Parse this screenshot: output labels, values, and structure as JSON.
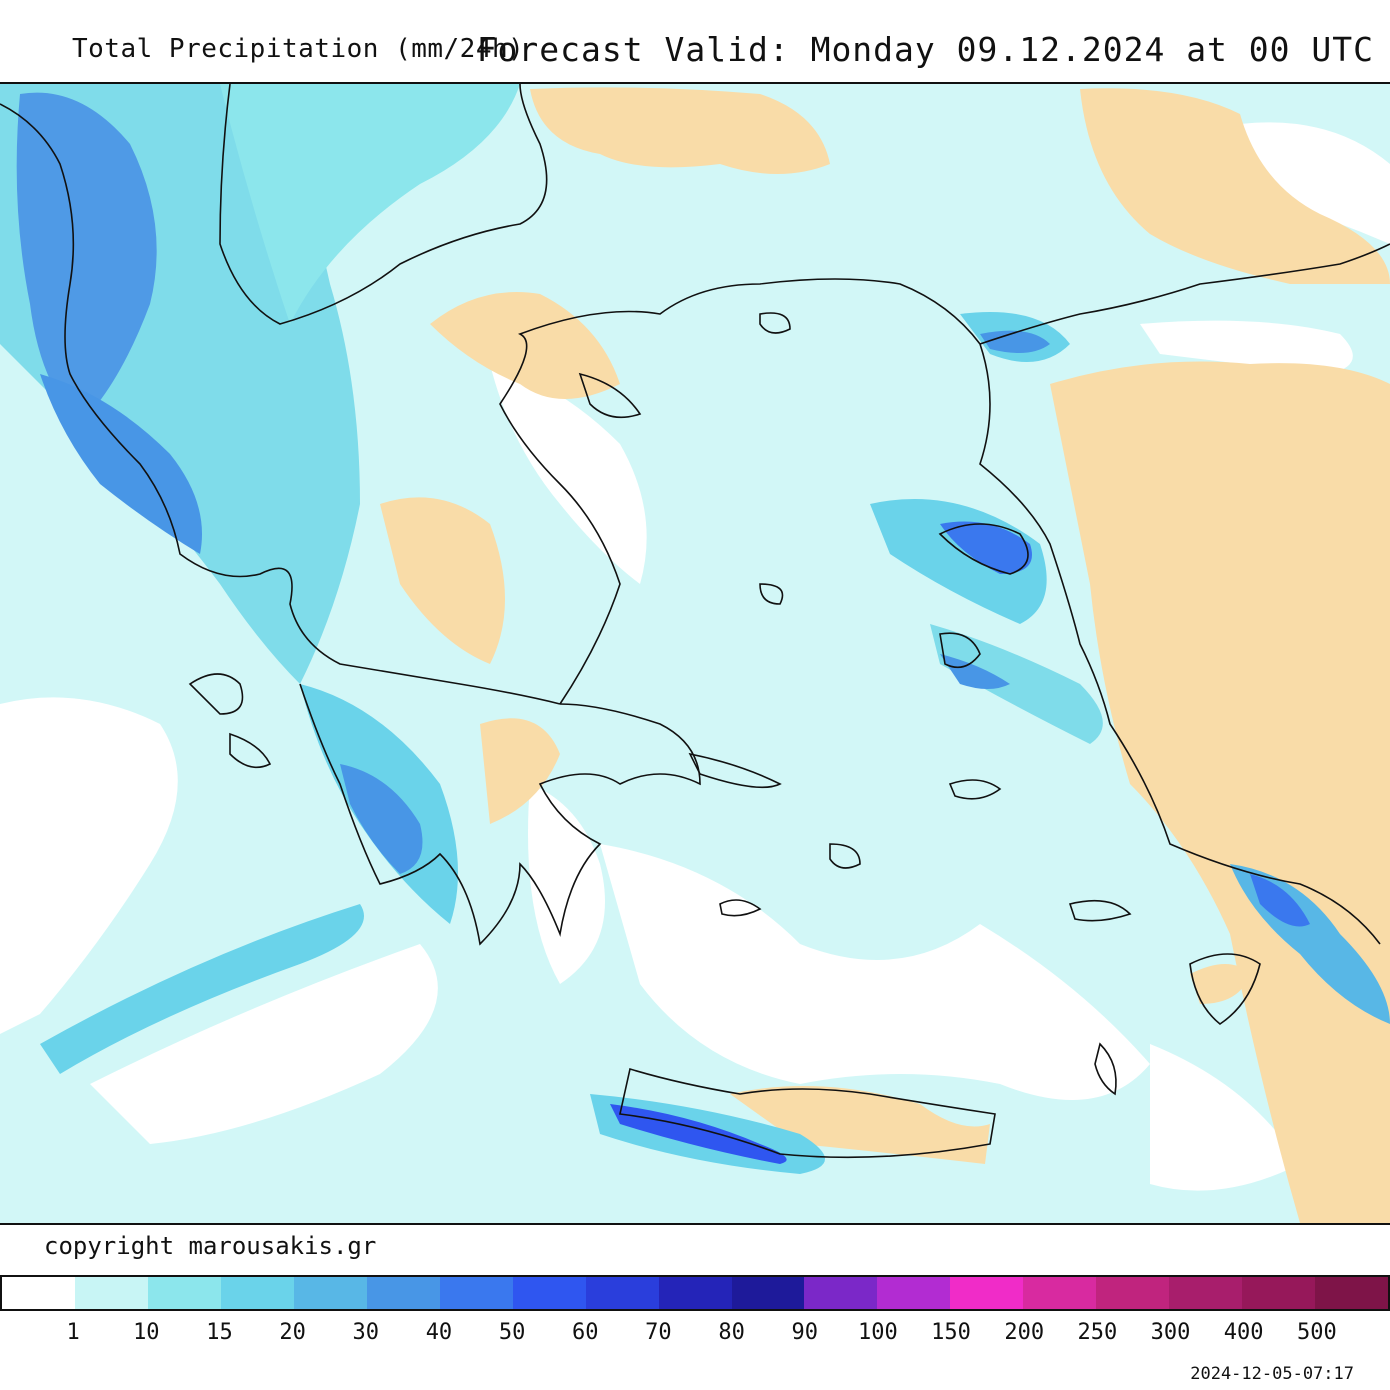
{
  "header": {
    "left_title": "Total Precipitation (mm/24h)",
    "right_title": "Forecast Valid:  Monday 09.12.2024 at 00 UTC"
  },
  "footer": {
    "copyright": "copyright marousakis.gr",
    "timestamp": "2024-12-05-07:17"
  },
  "legend": {
    "colors": [
      "#ffffff",
      "#c8f5f5",
      "#8ce6ec",
      "#6ad3ea",
      "#58b7e6",
      "#4896e6",
      "#3a78ee",
      "#2f56f0",
      "#2a3edc",
      "#2424b8",
      "#1e1a9a",
      "#7b28c8",
      "#b22cd2",
      "#f02cc8",
      "#d82aa0",
      "#c0247e",
      "#a81e6c",
      "#96185a",
      "#7e1448"
    ],
    "labels": [
      "1",
      "10",
      "15",
      "20",
      "30",
      "40",
      "50",
      "60",
      "70",
      "80",
      "90",
      "100",
      "150",
      "200",
      "250",
      "300",
      "400",
      "500"
    ]
  },
  "map_colors": {
    "sea_light": "#d2f7f7",
    "land_dry": "#f9dca8",
    "band_mid": "#7fdcea",
    "band_heavy": "#4f9ae6",
    "band_max": "#2f56f0",
    "no_rain": "#ffffff",
    "coast": "#111111"
  }
}
